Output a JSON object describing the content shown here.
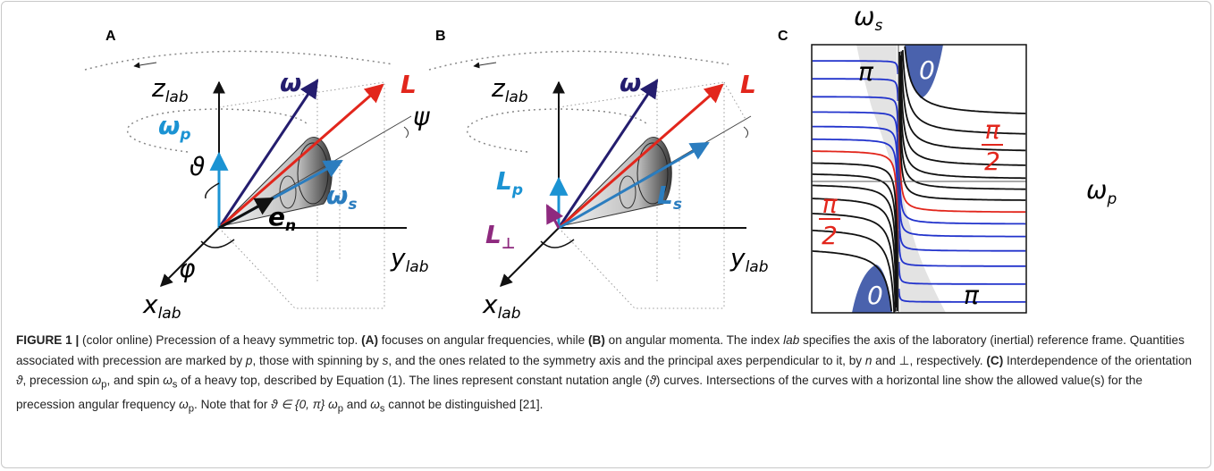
{
  "panel_a": {
    "label": "A",
    "z_axis": [
      "z",
      "lab"
    ],
    "x_axis": [
      "x",
      "lab"
    ],
    "y_axis": [
      "y",
      "lab"
    ],
    "omega": "ω",
    "L": "L",
    "omega_p": [
      "ω",
      "p"
    ],
    "omega_s": [
      "ω",
      "s"
    ],
    "e_n": [
      "e",
      "n"
    ],
    "theta": "ϑ",
    "phi": "φ",
    "psi": "ψ"
  },
  "panel_b": {
    "label": "B",
    "z_axis": [
      "z",
      "lab"
    ],
    "x_axis": [
      "x",
      "lab"
    ],
    "y_axis": [
      "y",
      "lab"
    ],
    "omega": "ω",
    "L": "L",
    "L_p": [
      "L",
      "p"
    ],
    "L_s": [
      "L",
      "s"
    ],
    "L_perp": [
      "L",
      "⊥"
    ]
  },
  "panel_c": {
    "label": "C",
    "omega_s": [
      "ω",
      "s"
    ],
    "omega_p": [
      "ω",
      "p"
    ],
    "pi_top": "π",
    "pi_bottom": "π",
    "zero_top": "0",
    "zero_bottom": "0",
    "half_pi_right": [
      "π",
      "2"
    ],
    "half_pi_left": [
      "π",
      "2"
    ]
  },
  "caption": [
    "FIGURE 1 |",
    " (color online) Precession of a heavy symmetric top. ",
    "(A)",
    " focuses on angular frequencies, while ",
    "(B)",
    " on angular momenta. The index ",
    "lab",
    " specifies the axis of the laboratory (inertial) reference frame. Quantities associated with precession are marked by ",
    "p",
    ", those with spinning by ",
    "s",
    ", and the ones related to the symmetry axis and the principal axes perpendicular to it, by ",
    "n",
    " and ⊥, respectively. ",
    "(C)",
    " Interdependence of the orientation ",
    "ϑ",
    ", precession ",
    "ω",
    "p",
    ", and spin ",
    "ω",
    "s",
    " of a heavy top, described by Equation (1). The lines represent constant nutation angle (",
    "ϑ",
    ") curves. Intersections of the curves with a horizontal line show the allowed value(s) for the precession angular frequency ",
    "ω",
    "p",
    ". Note that for ",
    "ϑ ∈ {0, π} ",
    "ω",
    "p",
    " and ",
    "ω",
    "s",
    " cannot be distinguished [21]."
  ]
}
